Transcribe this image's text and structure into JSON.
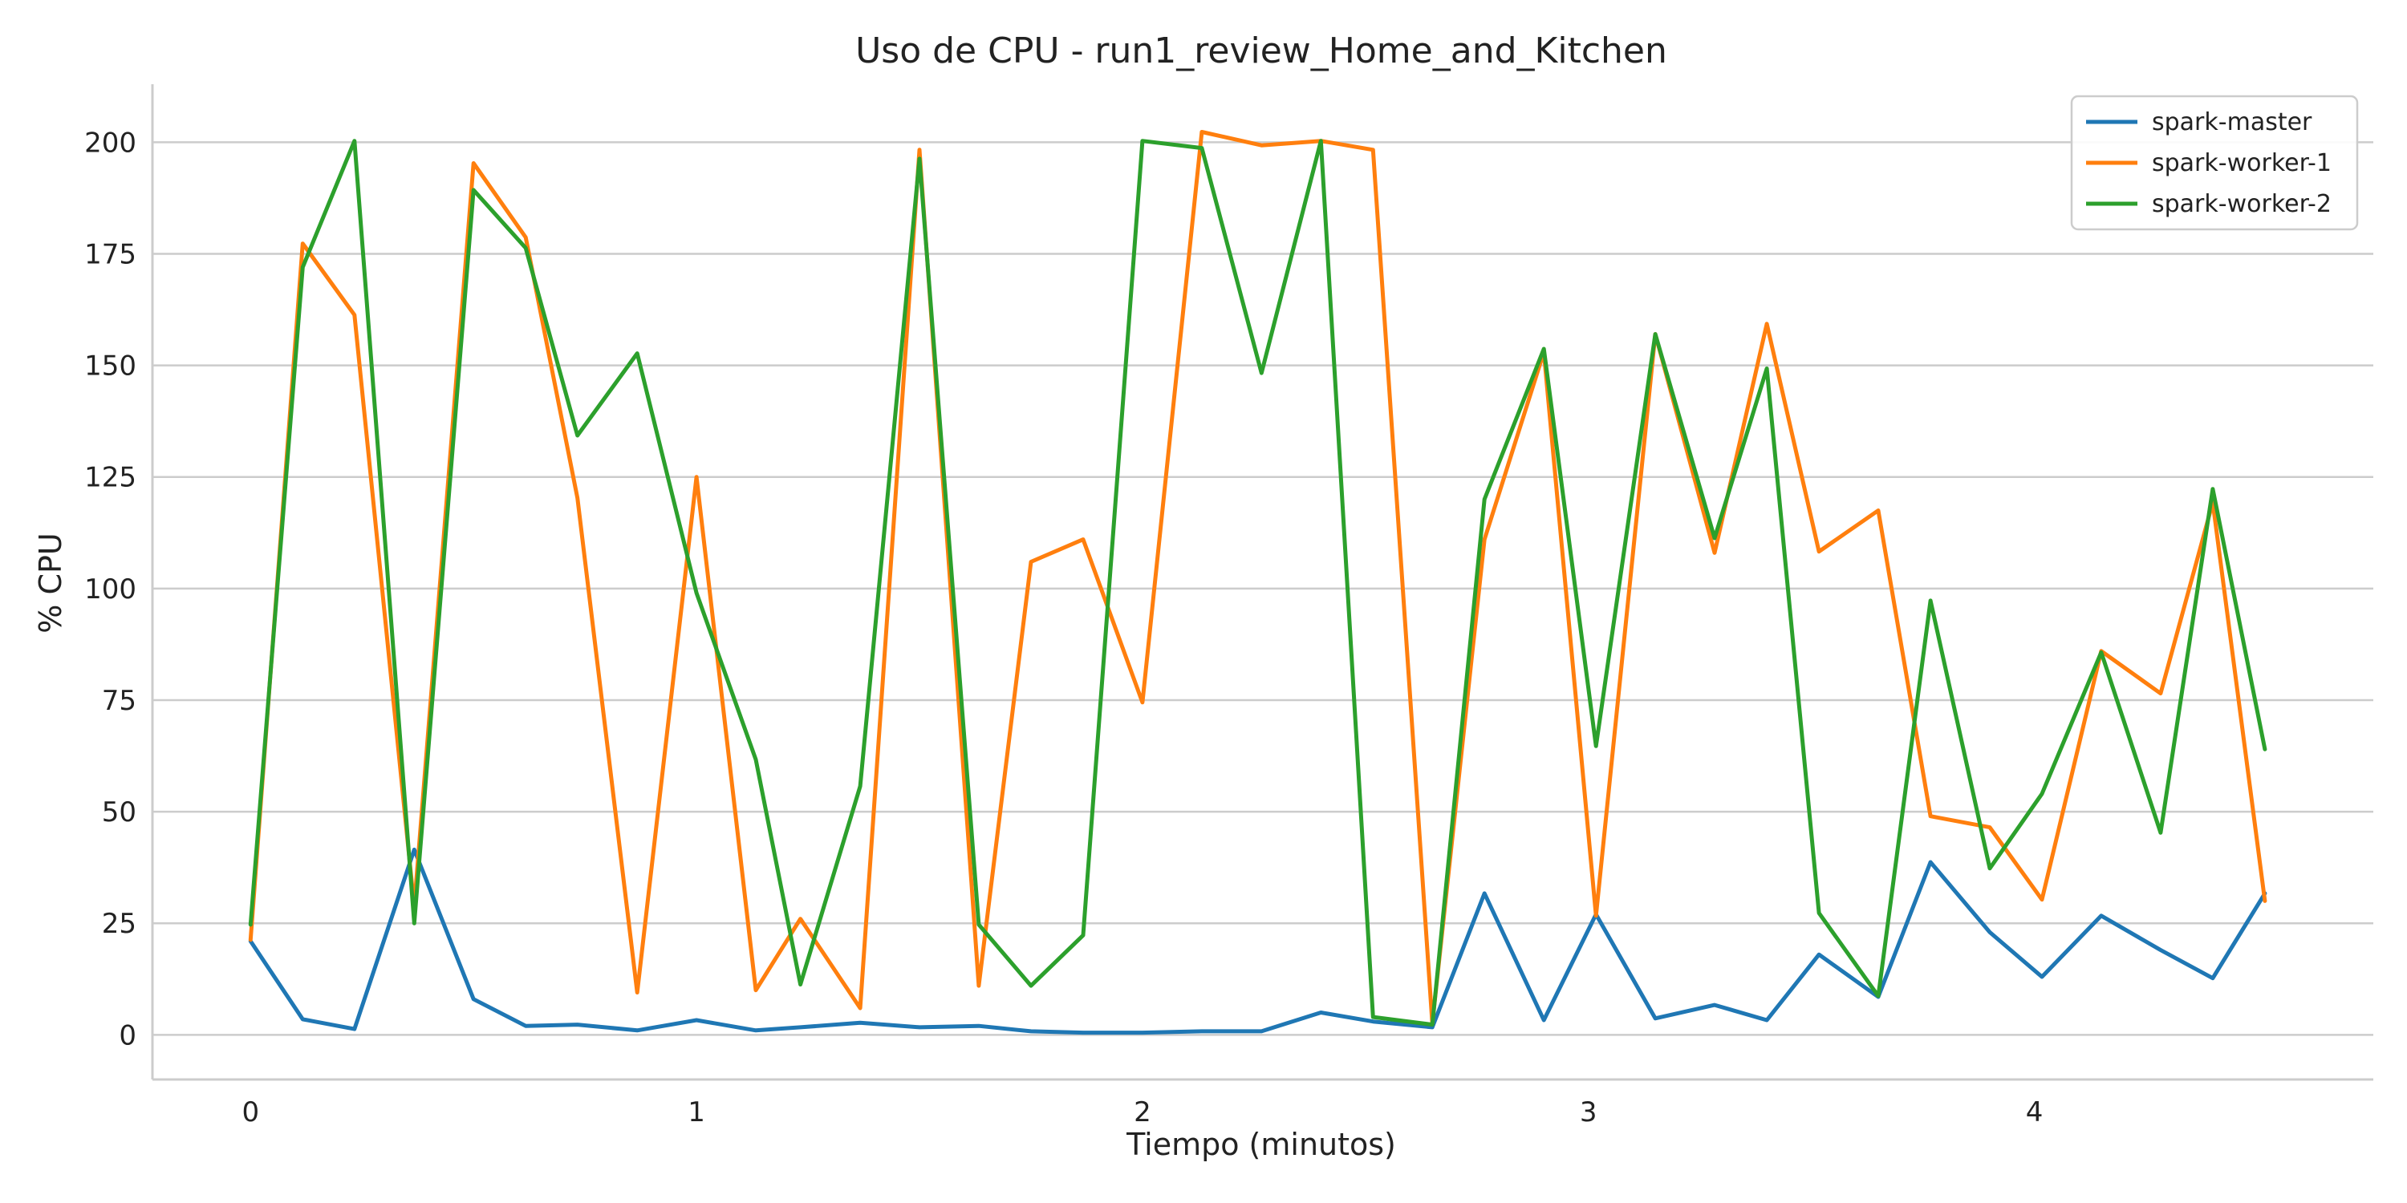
{
  "chart_data": {
    "type": "line",
    "title": "Uso de CPU - run1_review_Home_and_Kitchen",
    "xlabel": "Tiempo (minutos)",
    "ylabel": "% CPU",
    "xlim": [
      -0.22,
      4.76
    ],
    "ylim": [
      -10,
      213
    ],
    "xticks": [
      0,
      1,
      2,
      3,
      4
    ],
    "yticks": [
      0,
      25,
      50,
      75,
      100,
      125,
      150,
      175,
      200
    ],
    "grid": "horizontal",
    "legend_position": "top-right",
    "x": [
      0,
      0.117,
      0.233,
      0.367,
      0.5,
      0.617,
      0.733,
      0.867,
      1.0,
      1.133,
      1.233,
      1.367,
      1.5,
      1.633,
      1.75,
      1.867,
      2.0,
      2.133,
      2.267,
      2.4,
      2.517,
      2.65,
      2.767,
      2.9,
      3.017,
      3.15,
      3.283,
      3.4,
      3.517,
      3.65,
      3.767,
      3.9,
      4.017,
      4.15,
      4.283,
      4.4,
      4.517
    ],
    "series": [
      {
        "name": "spark-master",
        "color": "#1f77b4",
        "values": [
          21,
          3.5,
          1.3,
          41.5,
          8,
          2,
          2.3,
          1,
          3.3,
          1,
          1.7,
          2.7,
          1.7,
          2,
          0.8,
          0.5,
          0.5,
          0.8,
          0.8,
          5,
          3,
          1.7,
          31.7,
          3.3,
          27,
          3.7,
          6.7,
          3.3,
          18,
          8.5,
          38.7,
          23,
          13,
          26.7,
          19,
          12.7,
          31.7
        ]
      },
      {
        "name": "spark-worker-1",
        "color": "#ff7f0e",
        "values": [
          21.3,
          177.3,
          161.3,
          28.7,
          195.3,
          178.7,
          120.3,
          9.5,
          125,
          10,
          26,
          6,
          198.3,
          11,
          106,
          111,
          74.5,
          202.3,
          199.3,
          200.3,
          198.3,
          2.5,
          111,
          153,
          26.7,
          157,
          108,
          159.3,
          108.3,
          117.5,
          49,
          46.5,
          30.3,
          86,
          76.5,
          119.3,
          30
        ]
      },
      {
        "name": "spark-worker-2",
        "color": "#2ca02c",
        "values": [
          24.7,
          172,
          200.3,
          25,
          189.3,
          176.3,
          134.3,
          152.7,
          99,
          61.7,
          11.3,
          55.7,
          196.3,
          24.7,
          11,
          22.3,
          200.3,
          198.7,
          148.3,
          200.3,
          4,
          2.3,
          120,
          153.7,
          64.7,
          157,
          111.3,
          149.3,
          27.3,
          8.7,
          97.3,
          37.3,
          54,
          85.7,
          45.3,
          122.3,
          64
        ]
      }
    ]
  }
}
